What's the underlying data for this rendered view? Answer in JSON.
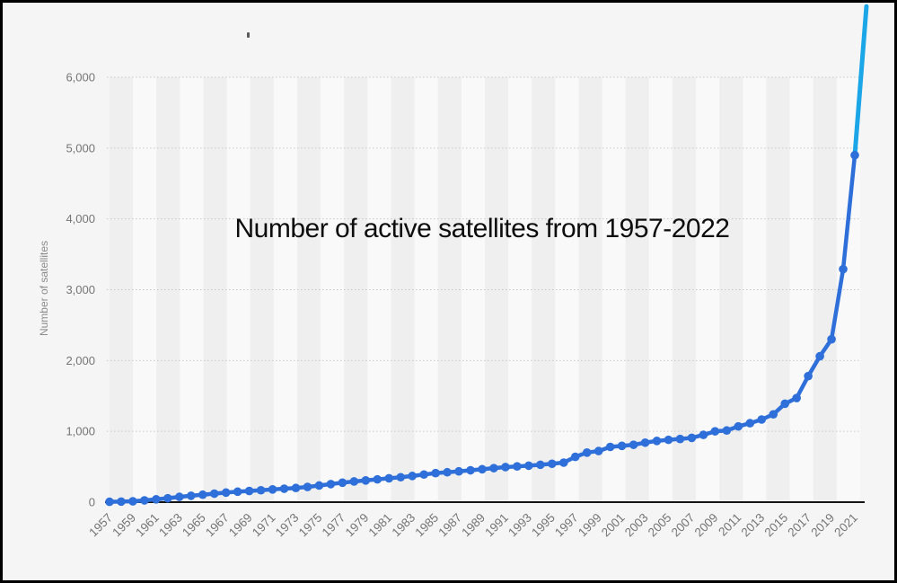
{
  "page": {
    "background": "#f5f5f5",
    "frame_border_color": "#000000",
    "stripe_dark": "#efefef",
    "stripe_light": "#f9f9f9",
    "gridline_color": "#c9c9c9",
    "axis_color": "#141414",
    "tick_label_color": "#757575"
  },
  "chart_data": {
    "type": "line",
    "title": "Number of active satellites from 1957-2022",
    "ylabel": "Number of satellites",
    "xlabel": "",
    "legend": "none",
    "grid": "horizontal dotted",
    "marker": "circle",
    "line_color": "#2e6fd9",
    "final_segment_color": "#1ba6e8",
    "final_segment_years": [
      2021,
      2022
    ],
    "last_point_offscale": true,
    "ylim": [
      0,
      6000
    ],
    "xlim": [
      1957,
      2022
    ],
    "y_ticks": [
      0,
      1000,
      2000,
      3000,
      4000,
      5000,
      6000
    ],
    "y_tick_labels": [
      "0",
      "1,000",
      "2,000",
      "3,000",
      "4,000",
      "5,000",
      "6,000"
    ],
    "x_tick_labels": [
      "1957",
      "1959",
      "1961",
      "1963",
      "1965",
      "1967",
      "1969",
      "1971",
      "1973",
      "1975",
      "1977",
      "1979",
      "1981",
      "1983",
      "1985",
      "1987",
      "1989",
      "1991",
      "1993",
      "1995",
      "1997",
      "1999",
      "2001",
      "2003",
      "2005",
      "2007",
      "2009",
      "2011",
      "2013",
      "2015",
      "2017",
      "2019",
      "2021"
    ],
    "years": [
      1957,
      1958,
      1959,
      1960,
      1961,
      1962,
      1963,
      1964,
      1965,
      1966,
      1967,
      1968,
      1969,
      1970,
      1971,
      1972,
      1973,
      1974,
      1975,
      1976,
      1977,
      1978,
      1979,
      1980,
      1981,
      1982,
      1983,
      1984,
      1985,
      1986,
      1987,
      1988,
      1989,
      1990,
      1991,
      1992,
      1993,
      1994,
      1995,
      1996,
      1997,
      1998,
      1999,
      2000,
      2001,
      2002,
      2003,
      2004,
      2005,
      2006,
      2007,
      2008,
      2009,
      2010,
      2011,
      2012,
      2013,
      2014,
      2015,
      2016,
      2017,
      2018,
      2019,
      2020,
      2021,
      2022
    ],
    "values": [
      5,
      8,
      12,
      25,
      40,
      55,
      75,
      90,
      105,
      120,
      135,
      148,
      158,
      168,
      180,
      190,
      200,
      215,
      235,
      255,
      275,
      292,
      307,
      322,
      337,
      352,
      370,
      390,
      410,
      422,
      435,
      450,
      465,
      480,
      495,
      505,
      515,
      528,
      542,
      558,
      640,
      700,
      722,
      780,
      795,
      810,
      840,
      865,
      880,
      892,
      908,
      950,
      1000,
      1012,
      1070,
      1115,
      1167,
      1240,
      1390,
      1470,
      1780,
      2060,
      2300,
      3290,
      4900,
      7000
    ]
  }
}
